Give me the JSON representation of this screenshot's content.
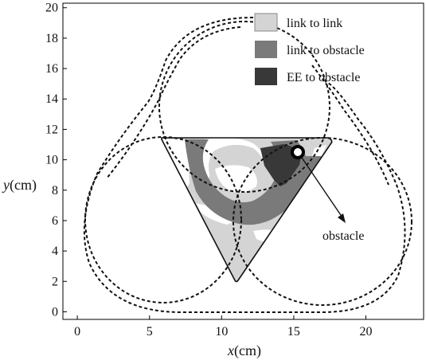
{
  "chart_data": {
    "type": "diagram",
    "x_axis": {
      "label_var": "x",
      "label_unit": "(cm)",
      "ticks": [
        "0",
        "5",
        "10",
        "15",
        "20"
      ],
      "range": [
        -1,
        24
      ]
    },
    "y_axis": {
      "label_var": "y",
      "label_unit": "(cm)",
      "ticks": [
        "0",
        "2",
        "4",
        "6",
        "8",
        "10",
        "12",
        "14",
        "16",
        "18",
        "20"
      ],
      "range": [
        -0.5,
        20.3
      ]
    },
    "legend": {
      "placement": "top-right",
      "items": [
        {
          "label": "link to link",
          "color": "#d4d4d4"
        },
        {
          "label": "link to obstacle",
          "color": "#7a7a7a"
        },
        {
          "label": "EE to obstacle",
          "color": "#383838"
        }
      ]
    },
    "annotation": {
      "text": "obstacle"
    },
    "obstacle_center": [
      15.8,
      10.7
    ]
  }
}
